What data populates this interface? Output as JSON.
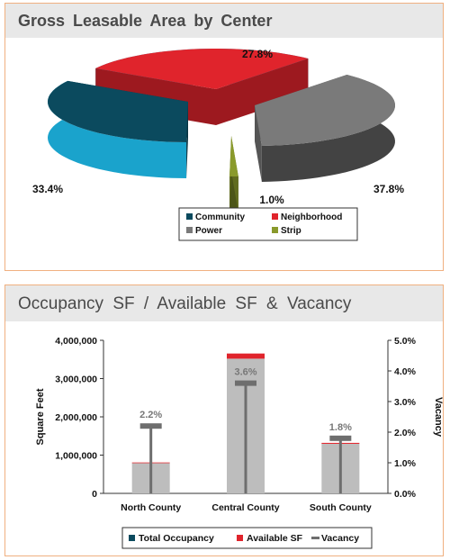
{
  "chart_data": [
    {
      "type": "pie",
      "title": "Gross Leasable Area by Center",
      "slices": [
        {
          "label": "Community",
          "value": 33.4,
          "display": "33.4%",
          "color": "#0b4a5e"
        },
        {
          "label": "Neighborhood",
          "value": 27.8,
          "display": "27.8%",
          "color": "#e0242c"
        },
        {
          "label": "Power",
          "value": 37.8,
          "display": "37.8%",
          "color": "#7a7a7a"
        },
        {
          "label": "Strip",
          "value": 1.0,
          "display": "1.0%",
          "color": "#8a9a2c"
        }
      ],
      "side_color": "#1aa3cc",
      "legend_placement": "bottom"
    },
    {
      "type": "bar",
      "title": "Occupancy SF / Available SF & Vacancy",
      "categories": [
        "North  County",
        "Central  County",
        "South  County"
      ],
      "series": [
        {
          "name": "Total  Occupancy",
          "values": [
            790000,
            3520000,
            1295000
          ],
          "color": "#bdbdbd"
        },
        {
          "name": "Available  SF",
          "values": [
            18000,
            135000,
            25000
          ],
          "color": "#e0242c"
        },
        {
          "name": "Vacancy",
          "values": [
            2.2,
            3.6,
            1.8
          ],
          "labels": [
            "2.2%",
            "3.6%",
            "1.8%"
          ],
          "color": "#6e6e6e",
          "axis": "right"
        }
      ],
      "ylabel": "Square  Feet",
      "y2label": "Vacancy",
      "ylim": [
        0,
        4000000
      ],
      "y2lim": [
        0,
        5.0
      ],
      "yticks": [
        "0",
        "1,000,000",
        "2,000,000",
        "3,000,000",
        "4,000,000"
      ],
      "y2ticks": [
        "0.0%",
        "1.0%",
        "2.0%",
        "3.0%",
        "4.0%",
        "5.0%"
      ],
      "legend_placement": "bottom"
    }
  ]
}
